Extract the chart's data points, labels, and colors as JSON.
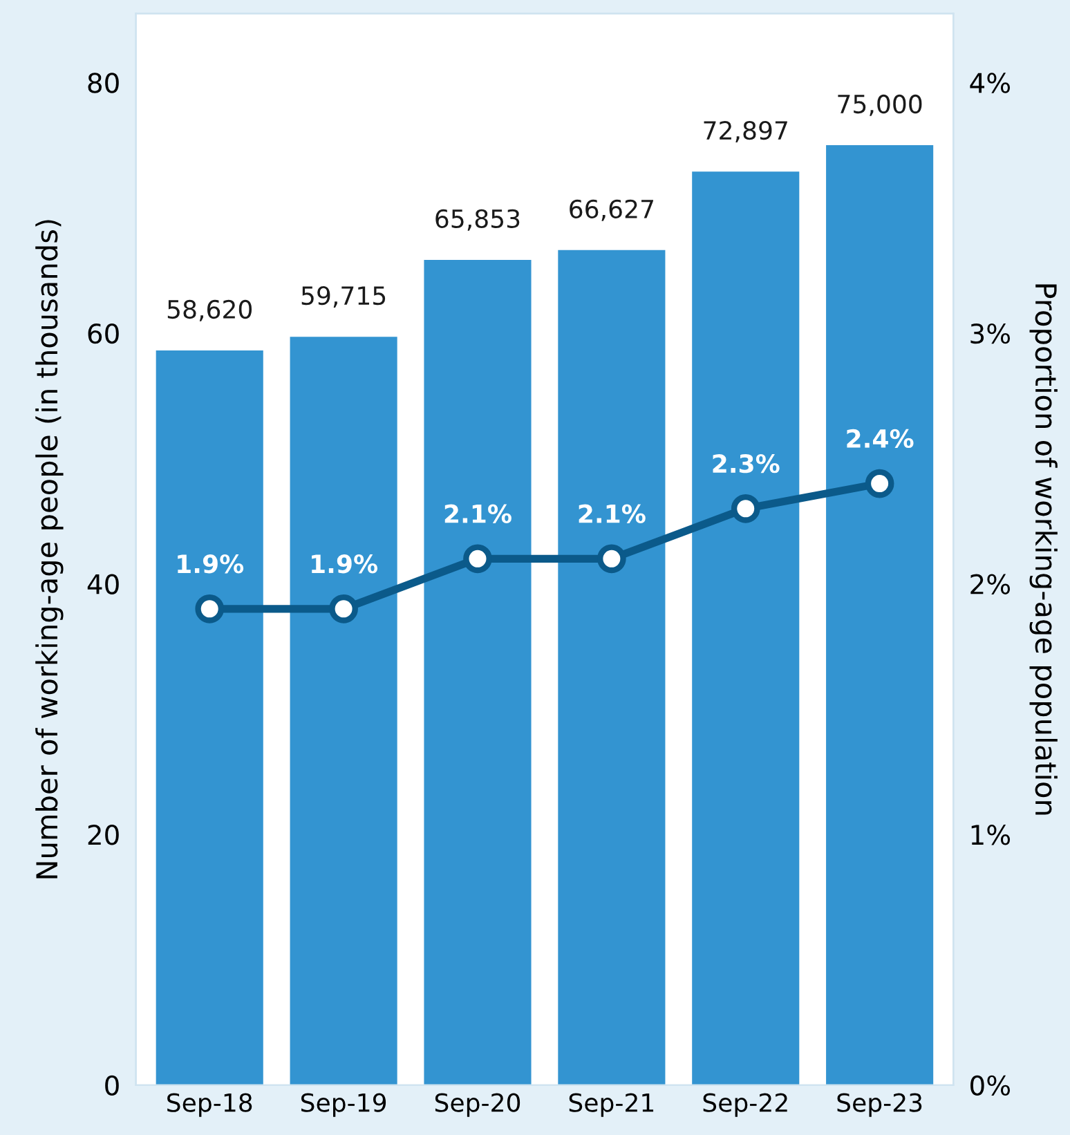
{
  "chart_data": {
    "type": "bar",
    "ylabel": "Number of working-age people (in thousands)",
    "y2label": "Proportion of working-age population",
    "categories": [
      "Sep-18",
      "Sep-19",
      "Sep-20",
      "Sep-21",
      "Sep-22",
      "Sep-23"
    ],
    "series": [
      {
        "color": "#3394d1",
        "values": [
          58.62,
          59.715,
          65.853,
          66.627,
          72.897,
          75.0
        ]
      },
      {
        "type": "line",
        "axis": "y2",
        "color": "#0b5a8a",
        "values": [
          1.9,
          1.9,
          2.1,
          2.1,
          2.3,
          2.4
        ],
        "value_labels": [
          "1.9%",
          "1.9%",
          "2.1%",
          "2.1%",
          "2.3%",
          "2.4%"
        ]
      }
    ],
    "ylim": [
      0,
      85.5
    ],
    "yticks": [
      0,
      20,
      40,
      60,
      80
    ],
    "y2lim": [
      0,
      4.275
    ],
    "y2ticks": [
      {
        "value": 0,
        "label": "0%"
      },
      {
        "value": 1,
        "label": "1%"
      },
      {
        "value": 2,
        "label": "2%"
      },
      {
        "value": 3,
        "label": "3%"
      },
      {
        "value": 4,
        "label": "4%"
      }
    ],
    "annotations": [
      "58,620",
      "59,715",
      "65,853",
      "66,627",
      "72,897",
      "75,000"
    ],
    "marker": "circle",
    "line_style": "solid",
    "grid": false,
    "legend": false
  }
}
